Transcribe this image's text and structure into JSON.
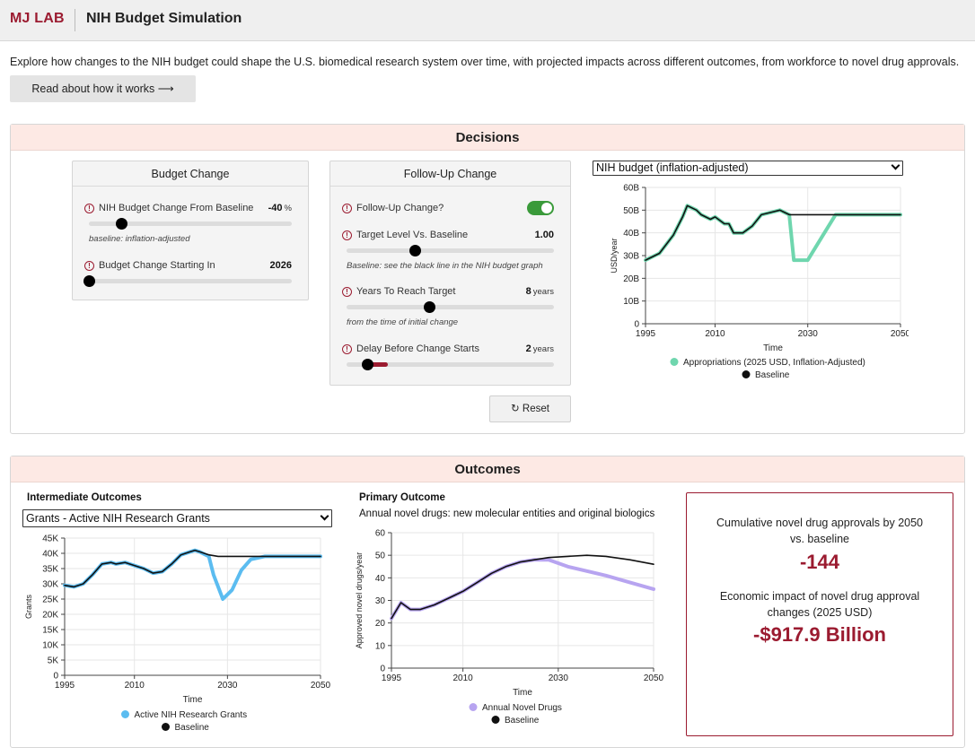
{
  "header": {
    "logo": "MJ LAB",
    "title": "NIH Budget Simulation"
  },
  "intro": {
    "text": "Explore how changes to the NIH budget could shape the U.S. biomedical research system over time, with projected impacts across different outcomes, from workforce to novel drug approvals.",
    "read_more_label": "Read about how it works ⟶"
  },
  "decisions": {
    "heading": "Decisions",
    "budget_panel": {
      "title": "Budget Change",
      "change_label": "NIH Budget Change From Baseline",
      "change_value": "-40",
      "change_unit": "%",
      "change_hint": "baseline: inflation-adjusted",
      "start_label": "Budget Change Starting In",
      "start_value": "2026"
    },
    "followup_panel": {
      "title": "Follow-Up Change",
      "toggle_label": "Follow-Up Change?",
      "toggle_on": true,
      "target_label": "Target Level Vs. Baseline",
      "target_value": "1.00",
      "target_hint": "Baseline: see the black line in the NIH budget graph",
      "years_label": "Years To Reach Target",
      "years_value": "8",
      "years_unit": "years",
      "years_hint": "from the time of initial change",
      "delay_label": "Delay Before Change Starts",
      "delay_value": "2",
      "delay_unit": "years"
    },
    "sliders": {
      "change_fraction": 0.16,
      "start_fraction": 0.0,
      "target_fraction": 0.33,
      "years_fraction": 0.4,
      "delay_fraction": 0.1,
      "delay_fill_fraction": 0.2
    },
    "reset_label": "Reset",
    "budget_select": "NIH budget (inflation-adjusted)"
  },
  "outcomes": {
    "heading": "Outcomes",
    "intermediate_title": "Intermediate Outcomes",
    "intermediate_select": "Grants - Active NIH Research Grants",
    "primary_title": "Primary Outcome",
    "primary_subtitle": "Annual novel drugs: new molecular entities and original biologics",
    "result": {
      "cum_label_1": "Cumulative novel drug approvals by 2050",
      "cum_label_2": "vs. baseline",
      "cum_value": "-144",
      "econ_label_1": "Economic impact of novel drug approval",
      "econ_label_2": "changes (2025 USD)",
      "econ_value": "-$917.9 Billion"
    }
  },
  "chart_data": [
    {
      "id": "budget",
      "type": "line",
      "xlabel": "Time",
      "ylabel": "USD/year",
      "xlim": [
        1995,
        2050
      ],
      "ylim": [
        0,
        60
      ],
      "xticks": [
        "1995",
        "2010",
        "2030",
        "2050"
      ],
      "yticks": [
        "0",
        "10B",
        "20B",
        "30B",
        "40B",
        "50B",
        "60B"
      ],
      "series": [
        {
          "name": "Appropriations (2025 USD, Inflation-Adjusted)",
          "color": "#6fd6ae",
          "points": [
            [
              1995,
              28
            ],
            [
              1998,
              31
            ],
            [
              2001,
              39
            ],
            [
              2003,
              47
            ],
            [
              2004,
              52
            ],
            [
              2006,
              50
            ],
            [
              2007,
              48
            ],
            [
              2009,
              46
            ],
            [
              2010,
              47
            ],
            [
              2012,
              44
            ],
            [
              2013,
              44
            ],
            [
              2014,
              40
            ],
            [
              2016,
              40
            ],
            [
              2018,
              43
            ],
            [
              2020,
              48
            ],
            [
              2022,
              49
            ],
            [
              2024,
              50
            ],
            [
              2025,
              49
            ],
            [
              2026,
              48
            ],
            [
              2027,
              28
            ],
            [
              2030,
              28
            ],
            [
              2033,
              38
            ],
            [
              2036,
              48
            ],
            [
              2038,
              48
            ],
            [
              2045,
              48
            ],
            [
              2050,
              48
            ]
          ]
        },
        {
          "name": "Baseline",
          "color": "#111111",
          "points": [
            [
              1995,
              28
            ],
            [
              1998,
              31
            ],
            [
              2001,
              39
            ],
            [
              2003,
              47
            ],
            [
              2004,
              52
            ],
            [
              2006,
              50
            ],
            [
              2007,
              48
            ],
            [
              2009,
              46
            ],
            [
              2010,
              47
            ],
            [
              2012,
              44
            ],
            [
              2013,
              44
            ],
            [
              2014,
              40
            ],
            [
              2016,
              40
            ],
            [
              2018,
              43
            ],
            [
              2020,
              48
            ],
            [
              2022,
              49
            ],
            [
              2024,
              50
            ],
            [
              2025,
              49
            ],
            [
              2026,
              48
            ],
            [
              2030,
              48
            ],
            [
              2040,
              48
            ],
            [
              2050,
              48
            ]
          ]
        }
      ]
    },
    {
      "id": "grants",
      "type": "line",
      "xlabel": "Time",
      "ylabel": "Grants",
      "xlim": [
        1995,
        2050
      ],
      "ylim": [
        0,
        45000
      ],
      "xticks": [
        "1995",
        "2010",
        "2030",
        "2050"
      ],
      "yticks": [
        "0",
        "5K",
        "10K",
        "15K",
        "20K",
        "25K",
        "30K",
        "35K",
        "40K",
        "45K"
      ],
      "series": [
        {
          "name": "Active NIH Research Grants",
          "color": "#5bbcf0",
          "points": [
            [
              1995,
              29500
            ],
            [
              1997,
              29000
            ],
            [
              1999,
              30000
            ],
            [
              2001,
              33000
            ],
            [
              2003,
              36500
            ],
            [
              2005,
              37000
            ],
            [
              2006,
              36500
            ],
            [
              2008,
              37000
            ],
            [
              2010,
              36000
            ],
            [
              2012,
              35000
            ],
            [
              2014,
              33500
            ],
            [
              2016,
              34000
            ],
            [
              2018,
              36500
            ],
            [
              2020,
              39500
            ],
            [
              2022,
              40500
            ],
            [
              2023,
              41000
            ],
            [
              2024,
              40500
            ],
            [
              2026,
              39000
            ],
            [
              2027,
              33000
            ],
            [
              2029,
              25000
            ],
            [
              2031,
              28000
            ],
            [
              2033,
              34500
            ],
            [
              2035,
              38000
            ],
            [
              2038,
              39000
            ],
            [
              2045,
              39000
            ],
            [
              2050,
              39000
            ]
          ]
        },
        {
          "name": "Baseline",
          "color": "#111111",
          "points": [
            [
              1995,
              29500
            ],
            [
              1997,
              29000
            ],
            [
              1999,
              30000
            ],
            [
              2001,
              33000
            ],
            [
              2003,
              36500
            ],
            [
              2005,
              37000
            ],
            [
              2006,
              36500
            ],
            [
              2008,
              37000
            ],
            [
              2010,
              36000
            ],
            [
              2012,
              35000
            ],
            [
              2014,
              33500
            ],
            [
              2016,
              34000
            ],
            [
              2018,
              36500
            ],
            [
              2020,
              39500
            ],
            [
              2022,
              40500
            ],
            [
              2023,
              41000
            ],
            [
              2024,
              40500
            ],
            [
              2026,
              39500
            ],
            [
              2028,
              39000
            ],
            [
              2035,
              39000
            ],
            [
              2050,
              39000
            ]
          ]
        }
      ]
    },
    {
      "id": "drugs",
      "type": "line",
      "xlabel": "Time",
      "ylabel": "Approved novel drugs/year",
      "xlim": [
        1995,
        2050
      ],
      "ylim": [
        0,
        60
      ],
      "xticks": [
        "1995",
        "2010",
        "2030",
        "2050"
      ],
      "yticks": [
        "0",
        "10",
        "20",
        "30",
        "40",
        "50",
        "60"
      ],
      "series": [
        {
          "name": "Annual Novel Drugs",
          "color": "#b7a4f0",
          "points": [
            [
              1995,
              22
            ],
            [
              1997,
              29
            ],
            [
              1999,
              26
            ],
            [
              2001,
              26
            ],
            [
              2004,
              28
            ],
            [
              2007,
              31
            ],
            [
              2010,
              34
            ],
            [
              2013,
              38
            ],
            [
              2016,
              42
            ],
            [
              2019,
              45
            ],
            [
              2022,
              47
            ],
            [
              2025,
              48
            ],
            [
              2028,
              48
            ],
            [
              2032,
              45
            ],
            [
              2036,
              43
            ],
            [
              2040,
              41
            ],
            [
              2045,
              38
            ],
            [
              2050,
              35
            ]
          ]
        },
        {
          "name": "Baseline",
          "color": "#111111",
          "points": [
            [
              1995,
              22
            ],
            [
              1997,
              29
            ],
            [
              1999,
              26
            ],
            [
              2001,
              26
            ],
            [
              2004,
              28
            ],
            [
              2007,
              31
            ],
            [
              2010,
              34
            ],
            [
              2013,
              38
            ],
            [
              2016,
              42
            ],
            [
              2019,
              45
            ],
            [
              2022,
              47
            ],
            [
              2025,
              48
            ],
            [
              2028,
              49
            ],
            [
              2032,
              49.5
            ],
            [
              2036,
              50
            ],
            [
              2040,
              49.5
            ],
            [
              2045,
              48
            ],
            [
              2050,
              46
            ]
          ]
        }
      ]
    }
  ]
}
